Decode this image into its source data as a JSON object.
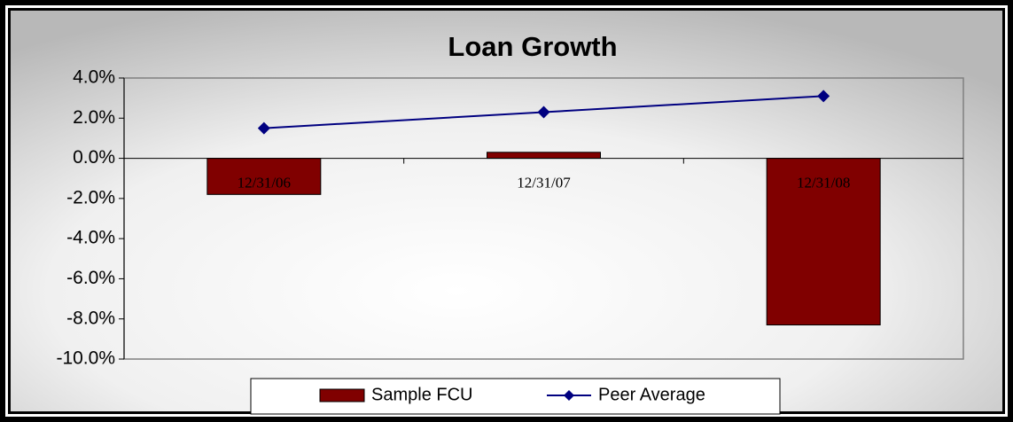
{
  "chart_data": {
    "type": "bar",
    "title": "Loan Growth",
    "categories": [
      "12/31/06",
      "12/31/07",
      "12/31/08"
    ],
    "series": [
      {
        "name": "Sample FCU",
        "type": "bar",
        "color": "#800000",
        "values": [
          -1.8,
          0.3,
          -8.3
        ]
      },
      {
        "name": "Peer Average",
        "type": "line",
        "color": "#000080",
        "values": [
          1.5,
          2.3,
          3.1
        ]
      }
    ],
    "ylim": [
      -10,
      4
    ],
    "yticks": [
      {
        "value": 4,
        "label": "4.0%"
      },
      {
        "value": 2,
        "label": "2.0%"
      },
      {
        "value": 0,
        "label": "0.0%"
      },
      {
        "value": -2,
        "label": "-2.0%"
      },
      {
        "value": -4,
        "label": "-4.0%"
      },
      {
        "value": -6,
        "label": "-6.0%"
      },
      {
        "value": -8,
        "label": "-8.0%"
      },
      {
        "value": -10,
        "label": "-10.0%"
      }
    ],
    "legend": "bottom"
  }
}
